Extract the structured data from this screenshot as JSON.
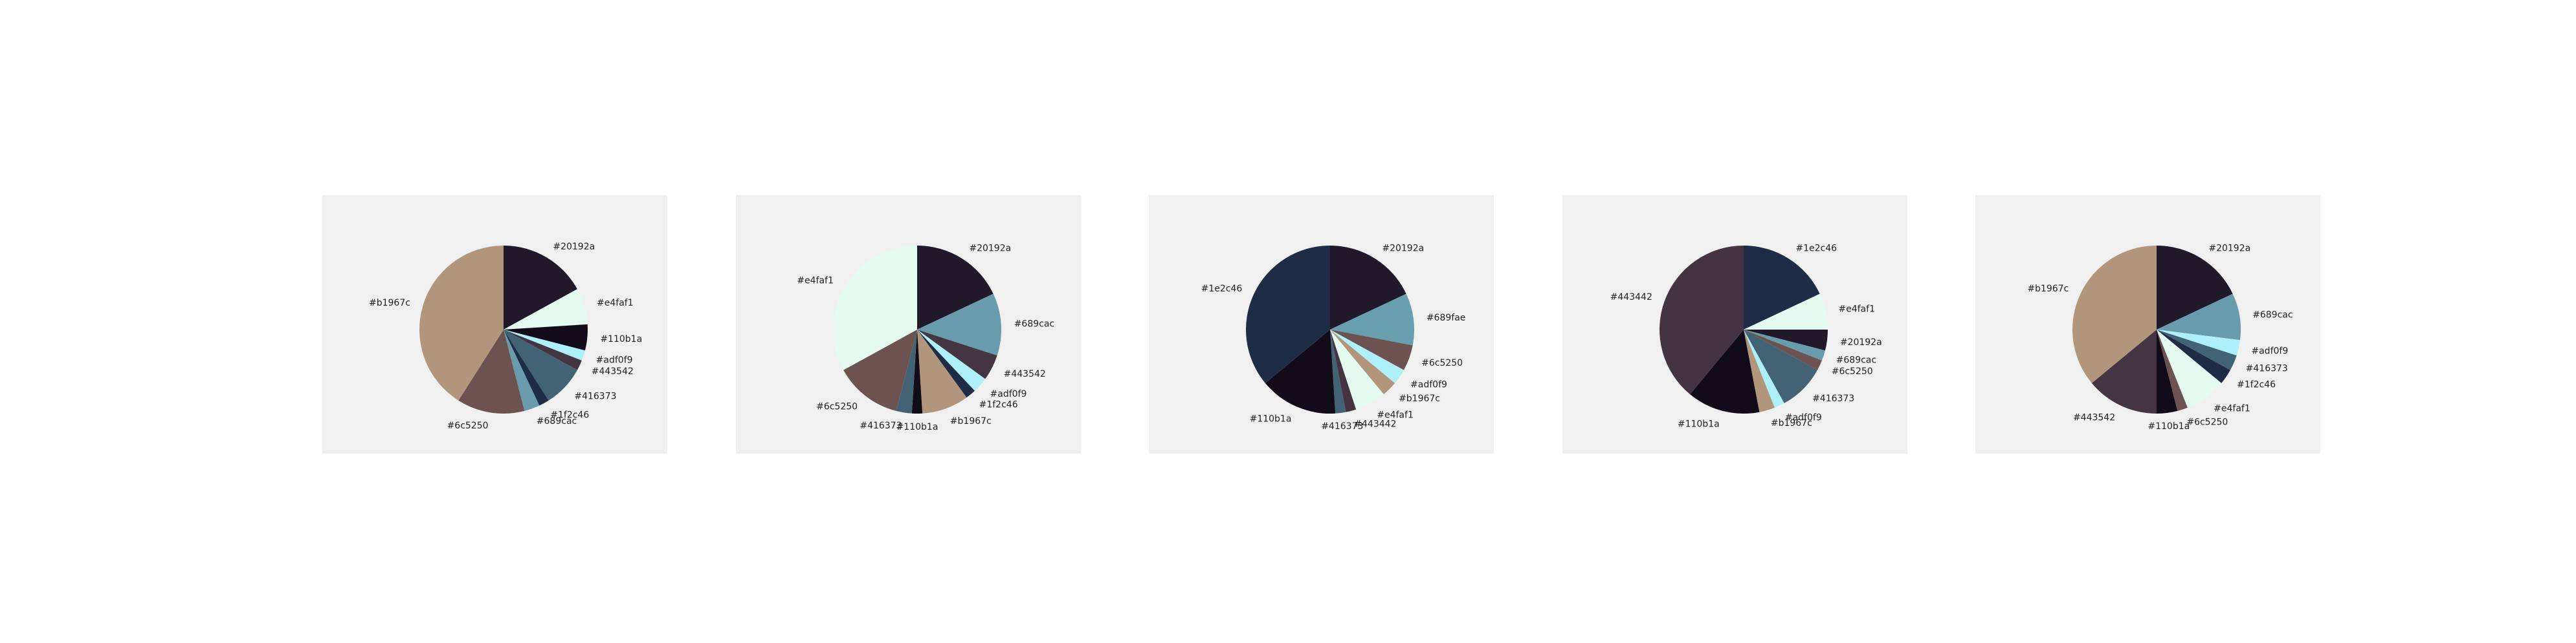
{
  "chart_data": [
    {
      "type": "pie",
      "slices": [
        {
          "label": "#20192a",
          "color": "#20192a",
          "value": 17
        },
        {
          "label": "#e4faf1",
          "color": "#e4faf1",
          "value": 7
        },
        {
          "label": "#110b1a",
          "color": "#110b1a",
          "value": 5
        },
        {
          "label": "#adf0f9",
          "color": "#adf0f9",
          "value": 2
        },
        {
          "label": "#443542",
          "color": "#443542",
          "value": 2
        },
        {
          "label": "#416373",
          "color": "#416373",
          "value": 8
        },
        {
          "label": "#1f2c46",
          "color": "#1f2c46",
          "value": 2
        },
        {
          "label": "#689cac",
          "color": "#689cac",
          "value": 3
        },
        {
          "label": "#6c5250",
          "color": "#6c5250",
          "value": 13
        },
        {
          "label": "#b1967c",
          "color": "#b1967c",
          "value": 41
        }
      ]
    },
    {
      "type": "pie",
      "slices": [
        {
          "label": "#20192a",
          "color": "#20192a",
          "value": 18
        },
        {
          "label": "#689cac",
          "color": "#689cac",
          "value": 12
        },
        {
          "label": "#443542",
          "color": "#443542",
          "value": 5
        },
        {
          "label": "#adf0f9",
          "color": "#adf0f9",
          "value": 3
        },
        {
          "label": "#1f2c46",
          "color": "#1f2c46",
          "value": 2
        },
        {
          "label": "#b1967c",
          "color": "#b1967c",
          "value": 9
        },
        {
          "label": "#110b1a",
          "color": "#110b1a",
          "value": 2
        },
        {
          "label": "#416373",
          "color": "#416373",
          "value": 3
        },
        {
          "label": "#6c5250",
          "color": "#6c5250",
          "value": 13
        },
        {
          "label": "#e4faf1",
          "color": "#e4faf1",
          "value": 33
        }
      ]
    },
    {
      "type": "pie",
      "slices": [
        {
          "label": "#20192a",
          "color": "#20192a",
          "value": 18
        },
        {
          "label": "#689fae",
          "color": "#689fae",
          "value": 10
        },
        {
          "label": "#6c5250",
          "color": "#6c5250",
          "value": 5
        },
        {
          "label": "#adf0f9",
          "color": "#adf0f9",
          "value": 3
        },
        {
          "label": "#b1967c",
          "color": "#b1967c",
          "value": 3
        },
        {
          "label": "#e4faf1",
          "color": "#e4faf1",
          "value": 6
        },
        {
          "label": "#443442",
          "color": "#443442",
          "value": 2
        },
        {
          "label": "#416373",
          "color": "#416373",
          "value": 2
        },
        {
          "label": "#110b1a",
          "color": "#110b1a",
          "value": 15
        },
        {
          "label": "#1e2c46",
          "color": "#1e2c46",
          "value": 36
        }
      ]
    },
    {
      "type": "pie",
      "slices": [
        {
          "label": "#1e2c46",
          "color": "#1e2c46",
          "value": 18
        },
        {
          "label": "#e4faf1",
          "color": "#e4faf1",
          "value": 7
        },
        {
          "label": "#20192a",
          "color": "#20192a",
          "value": 4
        },
        {
          "label": "#689cac",
          "color": "#689cac",
          "value": 2
        },
        {
          "label": "#6c5250",
          "color": "#6c5250",
          "value": 2
        },
        {
          "label": "#416373",
          "color": "#416373",
          "value": 9
        },
        {
          "label": "#adf0f9",
          "color": "#adf0f9",
          "value": 2
        },
        {
          "label": "#b1967c",
          "color": "#b1967c",
          "value": 3
        },
        {
          "label": "#110b1a",
          "color": "#110b1a",
          "value": 14
        },
        {
          "label": "#443442",
          "color": "#443442",
          "value": 39
        }
      ]
    },
    {
      "type": "pie",
      "slices": [
        {
          "label": "#20192a",
          "color": "#20192a",
          "value": 18
        },
        {
          "label": "#689cac",
          "color": "#689cac",
          "value": 9
        },
        {
          "label": "#adf0f9",
          "color": "#adf0f9",
          "value": 3
        },
        {
          "label": "#416373",
          "color": "#416373",
          "value": 3
        },
        {
          "label": "#1f2c46",
          "color": "#1f2c46",
          "value": 3
        },
        {
          "label": "#e4faf1",
          "color": "#e4faf1",
          "value": 8
        },
        {
          "label": "#6c5250",
          "color": "#6c5250",
          "value": 2
        },
        {
          "label": "#110b1a",
          "color": "#110b1a",
          "value": 4
        },
        {
          "label": "#443542",
          "color": "#443542",
          "value": 14
        },
        {
          "label": "#b1967c",
          "color": "#b1967c",
          "value": 36
        }
      ]
    }
  ]
}
